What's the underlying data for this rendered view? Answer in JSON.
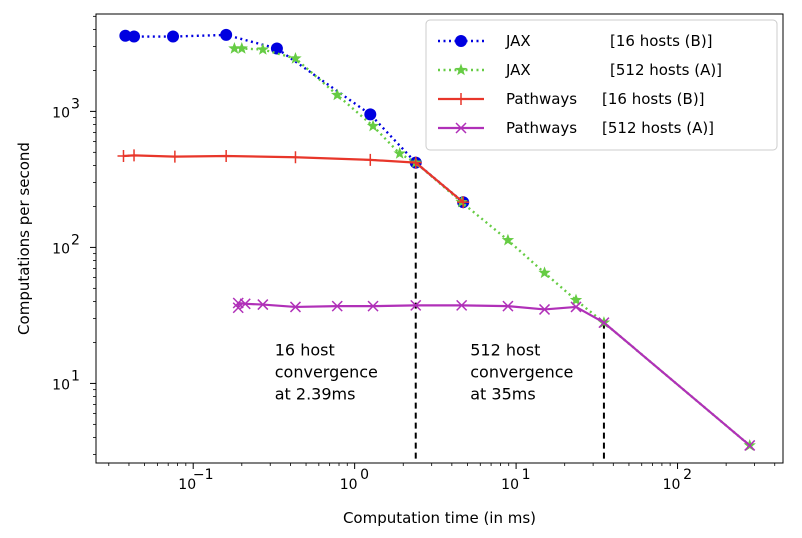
{
  "chart_data": {
    "type": "line",
    "xlabel": "Computation time (in ms)",
    "ylabel": "Computations per second",
    "xscale": "log",
    "yscale": "log",
    "xlim": [
      0.025,
      450
    ],
    "ylim": [
      2.6,
      5200
    ],
    "grid": false,
    "legend_position": "top-right",
    "x_ticks": [
      {
        "value": 0.1,
        "base": "10",
        "exp": "−1"
      },
      {
        "value": 1,
        "base": "10",
        "exp": "0"
      },
      {
        "value": 10,
        "base": "10",
        "exp": "1"
      },
      {
        "value": 100,
        "base": "10",
        "exp": "2"
      }
    ],
    "y_ticks": [
      {
        "value": 10,
        "base": "10",
        "exp": "1"
      },
      {
        "value": 100,
        "base": "10",
        "exp": "2"
      },
      {
        "value": 1000,
        "base": "10",
        "exp": "3"
      }
    ],
    "series": [
      {
        "name": "JAX",
        "name_suffix": "[16 hosts (B)]",
        "color": "#0000e0",
        "line_style": "dotted",
        "marker": "circle",
        "points": [
          [
            0.038,
            3600
          ],
          [
            0.043,
            3550
          ],
          [
            0.075,
            3550
          ],
          [
            0.16,
            3650
          ],
          [
            0.33,
            2900
          ],
          [
            1.25,
            950
          ],
          [
            2.39,
            420
          ],
          [
            4.7,
            215
          ]
        ]
      },
      {
        "name": "JAX",
        "name_suffix": "[512 hosts (A)]",
        "color": "#66cc44",
        "line_style": "dotted",
        "marker": "star",
        "points": [
          [
            0.18,
            2900
          ],
          [
            0.2,
            2900
          ],
          [
            0.27,
            2850
          ],
          [
            0.43,
            2450
          ],
          [
            0.78,
            1320
          ],
          [
            1.3,
            780
          ],
          [
            1.9,
            490
          ],
          [
            2.39,
            420
          ],
          [
            4.6,
            215
          ],
          [
            8.9,
            113
          ],
          [
            15,
            65
          ],
          [
            23.5,
            41
          ],
          [
            35,
            28
          ],
          [
            280,
            3.5
          ]
        ]
      },
      {
        "name": "Pathways",
        "name_suffix": "[16 hosts (B)]",
        "color": "#e8362a",
        "line_style": "solid",
        "marker": "plus",
        "points": [
          [
            0.037,
            470
          ],
          [
            0.043,
            475
          ],
          [
            0.077,
            465
          ],
          [
            0.16,
            470
          ],
          [
            0.43,
            460
          ],
          [
            1.25,
            440
          ],
          [
            2.39,
            420
          ],
          [
            4.7,
            215
          ]
        ]
      },
      {
        "name": "Pathways",
        "name_suffix": "[512 hosts (A)]",
        "color": "#b030b8",
        "line_style": "solid",
        "marker": "x",
        "points": [
          [
            0.19,
            36
          ],
          [
            0.19,
            39
          ],
          [
            0.21,
            38.5
          ],
          [
            0.27,
            38
          ],
          [
            0.43,
            36.5
          ],
          [
            0.78,
            37
          ],
          [
            1.3,
            37
          ],
          [
            2.39,
            37.5
          ],
          [
            4.6,
            37.5
          ],
          [
            8.9,
            37
          ],
          [
            15,
            35
          ],
          [
            23.5,
            36.5
          ],
          [
            35,
            28
          ],
          [
            280,
            3.5
          ]
        ]
      }
    ],
    "vlines": [
      {
        "x": 2.39,
        "y_top": 420
      },
      {
        "x": 35,
        "y_top": 28
      }
    ],
    "annotations": [
      {
        "lines": [
          "16 host",
          "convergence",
          "at 2.39ms"
        ],
        "x": 0.32,
        "y_top": 16
      },
      {
        "lines": [
          "512 host",
          "convergence",
          "at 35ms"
        ],
        "x": 5.2,
        "y_top": 16
      }
    ]
  }
}
